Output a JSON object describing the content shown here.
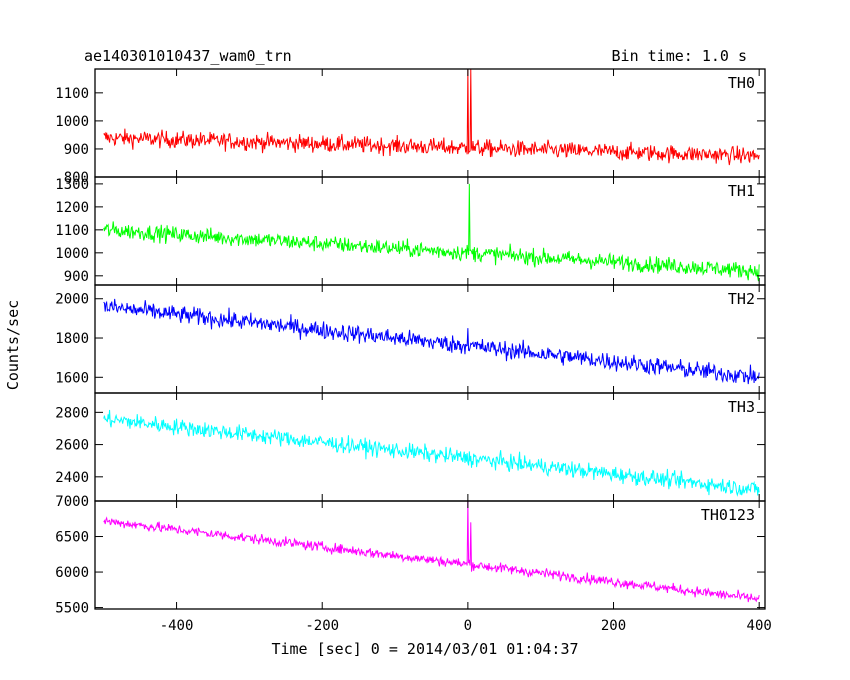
{
  "header": {
    "title": "ae140301010437_wam0_trn",
    "bin_time": "Bin time: 1.0 s"
  },
  "chart_data": {
    "type": "line",
    "xlabel": "Time [sec] 0 = 2014/03/01 01:04:37",
    "ylabel": "Counts/sec",
    "xlim": [
      -512,
      408
    ],
    "xticks": [
      -400,
      -200,
      0,
      200,
      400
    ],
    "x_range": [
      -500,
      400
    ],
    "x_step": 1,
    "grid": false,
    "panels": [
      {
        "name": "TH0",
        "color": "#ff0000",
        "ylim": [
          800,
          1185
        ],
        "yticks": [
          800,
          900,
          1000,
          1100
        ],
        "trend": {
          "start": 940,
          "end": 875
        },
        "noise": 30,
        "spikes": [
          {
            "x": 0,
            "value": 1185
          },
          {
            "x": 4,
            "value": 1185
          }
        ]
      },
      {
        "name": "TH1",
        "color": "#00ff00",
        "ylim": [
          860,
          1330
        ],
        "yticks": [
          900,
          1000,
          1100,
          1200,
          1300
        ],
        "trend": {
          "start": 1100,
          "end": 920
        },
        "noise": 35,
        "spikes": [
          {
            "x": 2,
            "value": 1300
          }
        ]
      },
      {
        "name": "TH2",
        "color": "#0000ff",
        "ylim": [
          1520,
          2070
        ],
        "yticks": [
          1600,
          1800,
          2000
        ],
        "trend": {
          "start": 1960,
          "end": 1600
        },
        "noise": 45,
        "spikes": [
          {
            "x": 0,
            "value": 1850
          }
        ]
      },
      {
        "name": "TH3",
        "color": "#00ffff",
        "ylim": [
          2250,
          2920
        ],
        "yticks": [
          2400,
          2600,
          2800
        ],
        "trend": {
          "start": 2760,
          "end": 2320
        },
        "noise": 50,
        "spikes": []
      },
      {
        "name": "TH0123",
        "color": "#ff00ff",
        "ylim": [
          5480,
          7000
        ],
        "yticks": [
          5500,
          6000,
          6500,
          7000
        ],
        "trend": {
          "start": 6720,
          "end": 5620
        },
        "noise": 70,
        "spikes": [
          {
            "x": 0,
            "value": 7000
          },
          {
            "x": 4,
            "value": 6700
          }
        ]
      }
    ]
  }
}
